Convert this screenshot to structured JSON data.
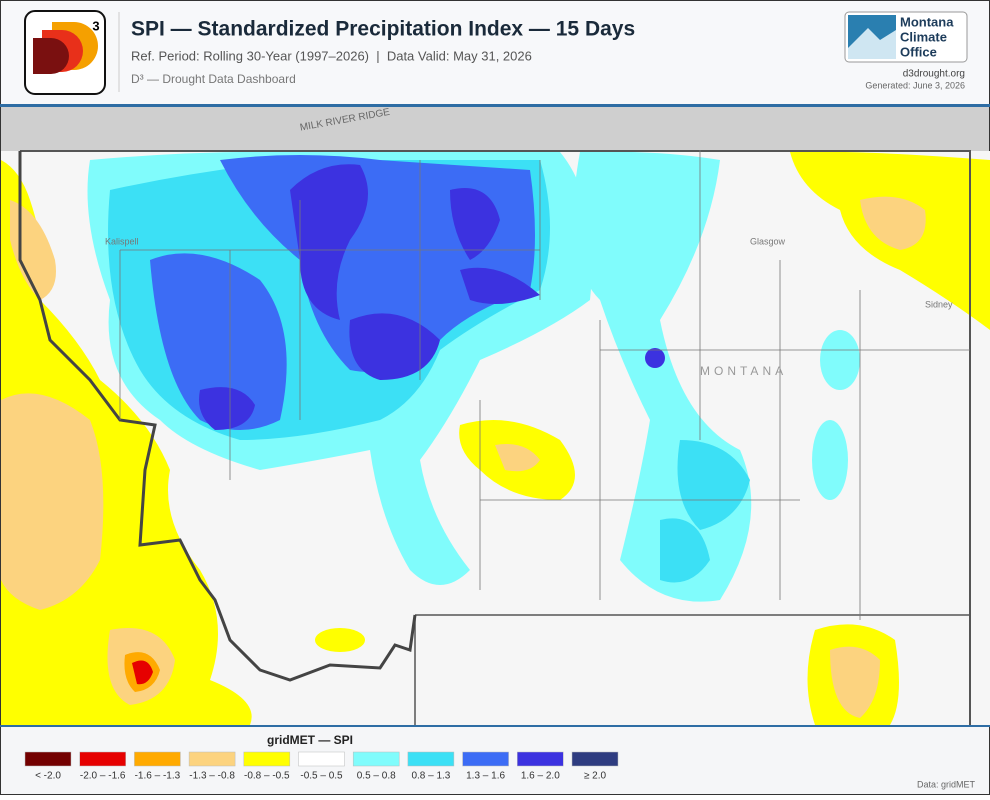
{
  "header": {
    "title": "SPI — Standardized Precipitation Index — 15 Days",
    "subtitle": "Ref. Period: Rolling 30-Year (1997–2026)  |  Data Valid: May 31, 2026",
    "brand": "D³ — Drought Data Dashboard",
    "logo_superscript": "3",
    "org_lines": [
      "Montana",
      "Climate",
      "Office"
    ],
    "url": "d3drought.org",
    "generated": "Generated: June 3, 2026"
  },
  "map": {
    "labels": [
      "MILK RIVER RIDGE",
      "MONTANA",
      "Kalispell",
      "Glasgow",
      "Sidney"
    ]
  },
  "legend": {
    "title": "gridMET — SPI",
    "items": [
      {
        "label": "< -2.0",
        "color": "#730000"
      },
      {
        "label": "-2.0 – -1.6",
        "color": "#e60000"
      },
      {
        "label": "-1.6 – -1.3",
        "color": "#ffaa00"
      },
      {
        "label": "-1.3 – -0.8",
        "color": "#fcd37f"
      },
      {
        "label": "-0.8 – -0.5",
        "color": "#ffff00"
      },
      {
        "label": "-0.5 – 0.5",
        "color": "#ffffff"
      },
      {
        "label": "0.5 – 0.8",
        "color": "#80fcfc"
      },
      {
        "label": "0.8 – 1.3",
        "color": "#3ce0f5"
      },
      {
        "label": "1.3 – 1.6",
        "color": "#3c6cf5"
      },
      {
        "label": "1.6 – 2.0",
        "color": "#3c32e0"
      },
      {
        "label": "≥ 2.0",
        "color": "#2e3c80"
      }
    ],
    "source": "Data: gridMET"
  }
}
